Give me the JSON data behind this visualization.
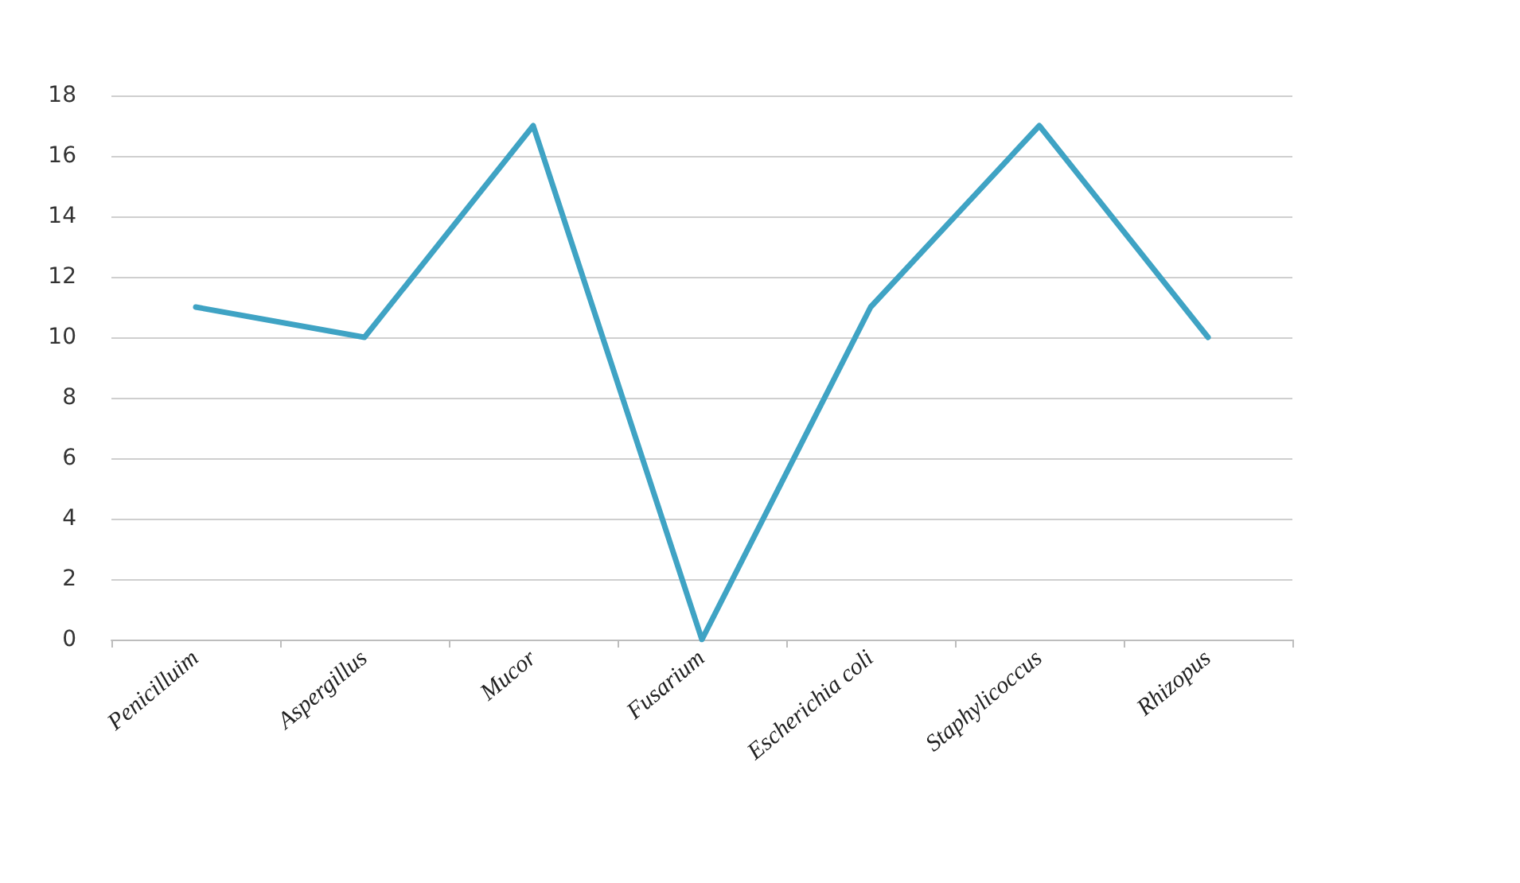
{
  "chart_data": {
    "type": "line",
    "categories": [
      "Penicilluim",
      "Aspergillus",
      "Mucor",
      "Fusarium",
      "Escherichia coli",
      "Staphylicoccus",
      "Rhizopus"
    ],
    "series": [
      {
        "color": "#3fa3c4",
        "values": [
          11,
          10,
          17,
          0,
          11,
          17,
          10
        ]
      }
    ],
    "ylim": [
      0,
      18
    ],
    "yticks": [
      0,
      2,
      4,
      6,
      8,
      10,
      12,
      14,
      16,
      18
    ],
    "grid": "y",
    "marker": "none",
    "line_style": "solid"
  }
}
